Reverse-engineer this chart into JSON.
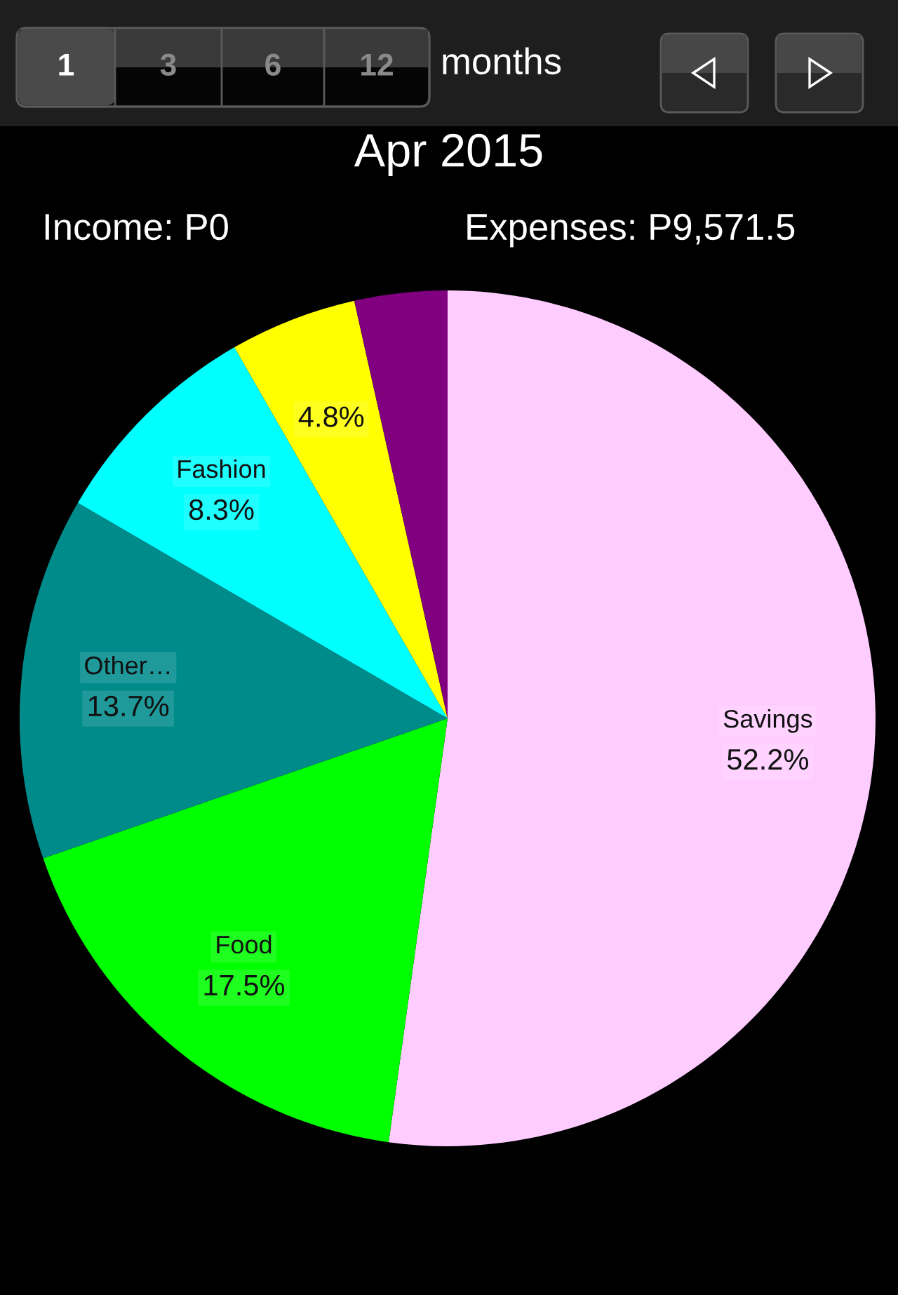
{
  "chart_data": {
    "type": "pie",
    "title": "Apr 2015",
    "categories": [
      "Savings",
      "Food",
      "Other…",
      "Fashion",
      null,
      null
    ],
    "values": [
      52.2,
      17.5,
      13.7,
      8.3,
      4.8,
      3.5
    ],
    "colors": [
      "#ffccff",
      "#00ff00",
      "#008b8b",
      "#00ffff",
      "#ffff00",
      "#800080"
    ],
    "value_labels": [
      "52.2%",
      "17.5%",
      "13.7%",
      "8.3%",
      "4.8%",
      null
    ],
    "annotations": [
      "1",
      "3",
      "6",
      "12",
      "months",
      "Income: P0",
      "Expenses: P9,571.5"
    ]
  }
}
